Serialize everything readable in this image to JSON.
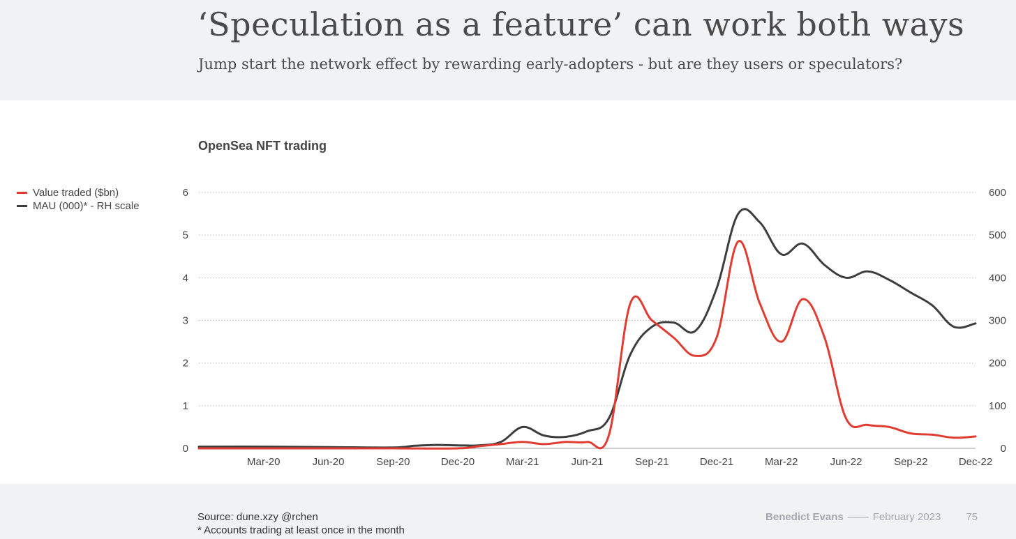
{
  "header": {
    "title": "‘Speculation as a feature’ can work both ways",
    "subtitle": "Jump start the network effect by rewarding early-adopters - but are they users or speculators?"
  },
  "footer": {
    "source": "Source: dune.xzy @rchen",
    "note": "* Accounts trading at least once in the month",
    "brand": "Benedict Evans",
    "separator": "——",
    "date": "February 2023",
    "page": "75"
  },
  "chart_data": {
    "type": "line",
    "title": "OpenSea NFT trading",
    "x_tick_labels": [
      "Mar-20",
      "Jun-20",
      "Sep-20",
      "Dec-20",
      "Mar-21",
      "Jun-21",
      "Sep-21",
      "Dec-21",
      "Mar-22",
      "Jun-22",
      "Sep-22",
      "Dec-22"
    ],
    "x_range": [
      "Dec-19",
      "Dec-22"
    ],
    "y_left": {
      "range": [
        0,
        6
      ],
      "ticks": [
        "0",
        "1",
        "2",
        "3",
        "4",
        "5",
        "6"
      ]
    },
    "y_right": {
      "range": [
        0,
        600
      ],
      "ticks": [
        "0",
        "100",
        "200",
        "300",
        "400",
        "500",
        "600"
      ]
    },
    "grid": true,
    "legend_position": "left",
    "series": [
      {
        "name": "Value traded ($bn)",
        "axis": "left",
        "color": "#e03c31",
        "points": [
          [
            "Dec-19",
            0.0
          ],
          [
            "Mar-20",
            0.0
          ],
          [
            "Jun-20",
            0.0
          ],
          [
            "Sep-20",
            0.0
          ],
          [
            "Dec-20",
            0.0
          ],
          [
            "Jan-21",
            0.05
          ],
          [
            "Feb-21",
            0.1
          ],
          [
            "Mar-21",
            0.15
          ],
          [
            "Apr-21",
            0.1
          ],
          [
            "May-21",
            0.15
          ],
          [
            "Jun-21",
            0.15
          ],
          [
            "Jul-21",
            0.3
          ],
          [
            "Aug-21",
            3.4
          ],
          [
            "Sep-21",
            3.0
          ],
          [
            "Oct-21",
            2.6
          ],
          [
            "Nov-21",
            2.17
          ],
          [
            "Dec-21",
            2.6
          ],
          [
            "Jan-22",
            4.85
          ],
          [
            "Feb-22",
            3.4
          ],
          [
            "Mar-22",
            2.5
          ],
          [
            "Apr-22",
            3.5
          ],
          [
            "May-22",
            2.6
          ],
          [
            "Jun-22",
            0.7
          ],
          [
            "Jul-22",
            0.55
          ],
          [
            "Aug-22",
            0.5
          ],
          [
            "Sep-22",
            0.35
          ],
          [
            "Oct-22",
            0.32
          ],
          [
            "Nov-22",
            0.25
          ],
          [
            "Dec-22",
            0.28
          ]
        ]
      },
      {
        "name": "MAU (000)* - RH scale",
        "axis": "right",
        "color": "#3d3d3f",
        "points": [
          [
            "Dec-19",
            4
          ],
          [
            "Mar-20",
            4
          ],
          [
            "Jun-20",
            3
          ],
          [
            "Sep-20",
            2
          ],
          [
            "Oct-20",
            6
          ],
          [
            "Nov-20",
            8
          ],
          [
            "Dec-20",
            7
          ],
          [
            "Jan-21",
            7
          ],
          [
            "Feb-21",
            15
          ],
          [
            "Mar-21",
            50
          ],
          [
            "Apr-21",
            30
          ],
          [
            "May-21",
            27
          ],
          [
            "Jun-21",
            40
          ],
          [
            "Jul-21",
            70
          ],
          [
            "Aug-21",
            220
          ],
          [
            "Sep-21",
            285
          ],
          [
            "Oct-21",
            295
          ],
          [
            "Nov-21",
            275
          ],
          [
            "Dec-21",
            375
          ],
          [
            "Jan-22",
            550
          ],
          [
            "Feb-22",
            530
          ],
          [
            "Mar-22",
            455
          ],
          [
            "Apr-22",
            480
          ],
          [
            "May-22",
            430
          ],
          [
            "Jun-22",
            400
          ],
          [
            "Jul-22",
            415
          ],
          [
            "Aug-22",
            395
          ],
          [
            "Sep-22",
            365
          ],
          [
            "Oct-22",
            335
          ],
          [
            "Nov-22",
            285
          ],
          [
            "Dec-22",
            293
          ]
        ]
      }
    ]
  }
}
